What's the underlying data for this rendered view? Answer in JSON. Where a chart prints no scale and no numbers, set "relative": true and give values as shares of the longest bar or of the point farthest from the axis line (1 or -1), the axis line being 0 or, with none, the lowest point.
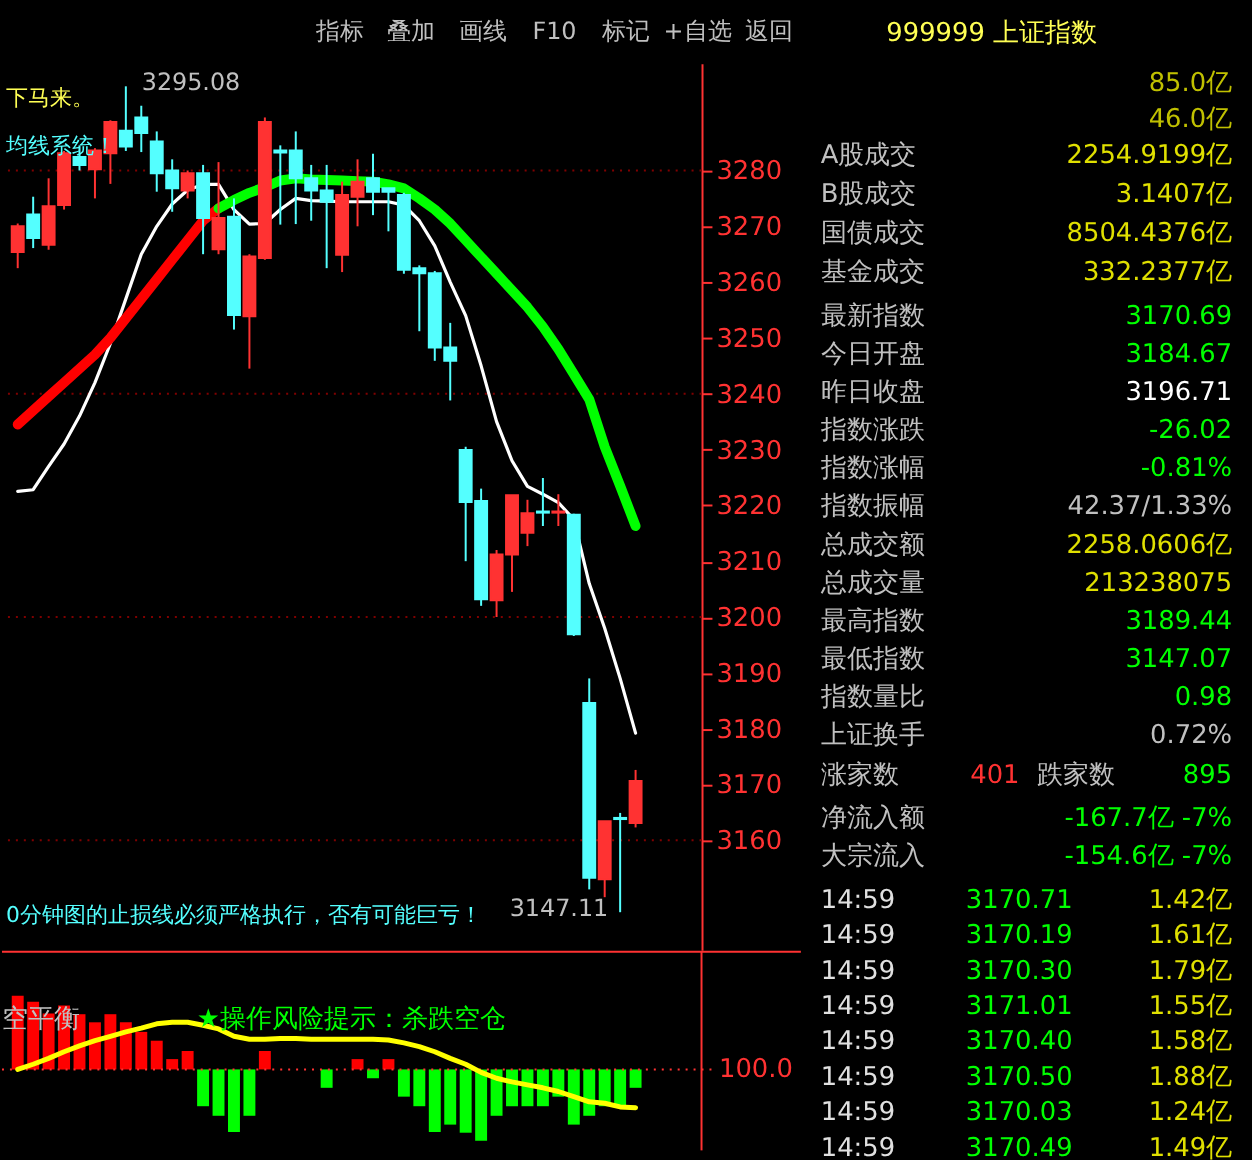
{
  "chart_data": [
    {
      "type": "other",
      "annotations": [
        "指标",
        "叠加",
        "画线",
        "F10",
        "标记",
        "+自选",
        "返回"
      ]
    },
    {
      "type": "candlestick",
      "categories": [
        null,
        null,
        null,
        null,
        null,
        null,
        null,
        null,
        null,
        null,
        null,
        null,
        null,
        null,
        null,
        null,
        null,
        null,
        null,
        null,
        null,
        null,
        null,
        null,
        null,
        null,
        null,
        null,
        null,
        null,
        null,
        null,
        null,
        null,
        null,
        null,
        null,
        null,
        null,
        null,
        null
      ],
      "ohlc": [
        [
          3265.4,
          3270.5,
          3262.5,
          3270.0
        ],
        [
          3272.1,
          3275.3,
          3266.1,
          3267.9
        ],
        [
          3266.7,
          3278.6,
          3265.8,
          3273.6
        ],
        [
          3273.8,
          3283.5,
          3273.0,
          3283.1
        ],
        [
          3282.4,
          3284.5,
          3280.0,
          3281.0
        ],
        [
          3280.2,
          3284.0,
          3275.0,
          3283.6
        ],
        [
          3283.1,
          3289.0,
          3277.6,
          3288.7
        ],
        [
          3287.1,
          3295.08,
          3283.5,
          3284.3
        ],
        [
          3289.5,
          3291.6,
          3283.3,
          3286.7
        ],
        [
          3285.2,
          3287.0,
          3276.2,
          3279.5
        ],
        [
          3280.0,
          3282.0,
          3272.6,
          3276.8
        ],
        [
          3276.4,
          3280.0,
          3275.0,
          3279.5
        ],
        [
          3279.5,
          3281.0,
          3265.0,
          3271.5
        ],
        [
          3265.9,
          3281.5,
          3265.0,
          3271.5
        ],
        [
          3271.7,
          3275.0,
          3251.5,
          3254.1
        ],
        [
          3253.9,
          3265.0,
          3244.5,
          3264.6
        ],
        [
          3264.3,
          3289.5,
          3264.0,
          3288.7
        ],
        [
          3283.6,
          3284.5,
          3270.3,
          3283.2
        ],
        [
          3283.6,
          3287.0,
          3270.4,
          3278.6
        ],
        [
          3278.6,
          3281.0,
          3271.0,
          3276.4
        ],
        [
          3276.4,
          3281.0,
          3262.5,
          3274.4
        ],
        [
          3264.9,
          3278.0,
          3261.8,
          3275.6
        ],
        [
          3275.3,
          3282.0,
          3270.0,
          3278.0
        ],
        [
          3278.6,
          3283.0,
          3272.0,
          3276.2
        ],
        [
          3276.8,
          3276.8,
          3269.1,
          3276.2
        ],
        [
          3275.6,
          3276.0,
          3261.5,
          3262.2
        ],
        [
          3262.5,
          3263.0,
          3251.2,
          3261.6
        ],
        [
          3261.6,
          3262.0,
          3245.9,
          3248.3
        ],
        [
          3248.3,
          3252.7,
          3238.8,
          3245.9
        ],
        [
          3229.9,
          3230.5,
          3210.0,
          3220.6
        ],
        [
          3220.8,
          3223.0,
          3202.0,
          3203.2
        ],
        [
          3203.0,
          3212.0,
          3200.0,
          3211.2
        ],
        [
          3211.2,
          3221.8,
          3204.5,
          3221.8
        ],
        [
          3215.1,
          3221.0,
          3212.7,
          3218.6
        ],
        [
          3218.9,
          3224.9,
          3216.3,
          3218.7
        ],
        [
          3218.7,
          3222.0,
          3216.3,
          3218.9
        ],
        [
          3218.3,
          3218.5,
          3196.6,
          3196.9
        ],
        [
          3184.6,
          3189.0,
          3151.2,
          3153.3
        ],
        [
          3153.0,
          3163.4,
          3149.8,
          3163.4
        ],
        [
          3164.0,
          3164.9,
          3147.11,
          3163.8
        ],
        [
          3163.1,
          3172.6,
          3162.3,
          3170.6
        ]
      ],
      "colors": [
        "#ff3232",
        "#54ffff",
        "#ff3232",
        "#ff3232",
        "#54ffff",
        "#ff3232",
        "#ff3232",
        "#54ffff",
        "#54ffff",
        "#54ffff",
        "#54ffff",
        "#ff3232",
        "#54ffff",
        "#ff3232",
        "#54ffff",
        "#ff3232",
        "#ff3232",
        "#54ffff",
        "#54ffff",
        "#54ffff",
        "#54ffff",
        "#ff3232",
        "#ff3232",
        "#54ffff",
        "#54ffff",
        "#54ffff",
        "#54ffff",
        "#54ffff",
        "#54ffff",
        "#54ffff",
        "#54ffff",
        "#ff3232",
        "#ff3232",
        "#ff3232",
        "#54ffff",
        "#ff3232",
        "#54ffff",
        "#54ffff",
        "#ff3232",
        "#54ffff",
        "#ff3232"
      ],
      "series": [
        {
          "type": "line",
          "color": "#ffffff",
          "values": [
            3222.5,
            3222.8,
            3227,
            3231,
            3236,
            3242,
            3249,
            3257,
            3265,
            3270,
            3274,
            3276.5,
            3277.5,
            3277.5,
            3273,
            3270.4,
            3270.5,
            3273,
            3275,
            3274.6,
            3274.5,
            3274.4,
            3274.4,
            3274.4,
            3274.4,
            3273.8,
            3271,
            3266.5,
            3260,
            3254,
            3245,
            3235,
            3228,
            3223.4,
            3222,
            3220.5,
            3217.5,
            3206,
            3198,
            3189,
            3179.2
          ]
        },
        {
          "type": "line",
          "color": "#ff0000",
          "values": [
            3234.5,
            3237,
            3239.5,
            3242,
            3244.5,
            3247,
            3250,
            3253.5,
            3257,
            3260.5,
            3264,
            3267.5,
            3271,
            3273.2,
            null,
            null,
            null,
            null,
            null,
            null,
            null,
            null,
            null,
            null,
            null,
            null,
            null,
            null,
            null,
            null,
            null,
            null,
            null,
            null,
            null,
            null,
            null,
            null,
            null,
            null,
            null
          ]
        },
        {
          "type": "line",
          "color": "#00ff00",
          "values": [
            null,
            null,
            null,
            null,
            null,
            null,
            null,
            null,
            null,
            null,
            null,
            null,
            null,
            3273.2,
            3274.7,
            3276,
            3277,
            3278.2,
            3278.6,
            3278.4,
            3278.3,
            3278.2,
            3278.1,
            3278,
            3277.5,
            3276.8,
            3275,
            3273,
            3270.5,
            3267.5,
            3264.5,
            3261.5,
            3258.5,
            3255.5,
            3252,
            3248,
            3243.5,
            3239,
            3230.5,
            3223.5,
            3216.3
          ]
        }
      ],
      "ylim": [
        3140.4,
        3299.2
      ],
      "yticks": [
        3160,
        3170,
        3180,
        3190,
        3200,
        3210,
        3220,
        3230,
        3240,
        3250,
        3260,
        3270,
        3280
      ],
      "ref_lines": [
        {
          "axis": "y",
          "value": 3160,
          "color": "#800000",
          "line_style": "dotted"
        },
        {
          "axis": "y",
          "value": 3200,
          "color": "#800000",
          "line_style": "dotted"
        },
        {
          "axis": "y",
          "value": 3240,
          "color": "#800000",
          "line_style": "dotted"
        },
        {
          "axis": "y",
          "value": 3280,
          "color": "#800000",
          "line_style": "dotted"
        }
      ],
      "annotations": [
        "下马来。",
        "均线系统！",
        "0分钟图的止损线必须严格执行，否有可能巨亏！",
        "3295.08",
        "3147.11"
      ]
    },
    {
      "type": "bar",
      "relative": true,
      "categories": [
        null,
        null,
        null,
        null,
        null,
        null,
        null,
        null,
        null,
        null,
        null,
        null,
        null,
        null,
        null,
        null,
        null,
        null,
        null,
        null,
        null,
        null,
        null,
        null,
        null,
        null,
        null,
        null,
        null,
        null,
        null,
        null,
        null,
        null,
        null,
        null,
        null,
        null,
        null,
        null,
        null
      ],
      "values": [
        1,
        0.92,
        0.76,
        0.87,
        0.75,
        0.64,
        0.75,
        0.64,
        0.51,
        0.39,
        0.14,
        0.25,
        -0.5,
        -0.63,
        -0.85,
        -0.63,
        0.25,
        0,
        0,
        0,
        -0.25,
        0,
        0.14,
        -0.12,
        0.14,
        -0.37,
        -0.5,
        -0.85,
        -0.75,
        -0.86,
        -0.97,
        -0.63,
        -0.5,
        -0.5,
        -0.5,
        -0.37,
        -0.75,
        -0.63,
        -0.5,
        -0.5,
        -0.25
      ],
      "colors": [
        "#ff0000",
        "#ff0000",
        "#ff0000",
        "#ff0000",
        "#ff0000",
        "#ff0000",
        "#ff0000",
        "#ff0000",
        "#ff0000",
        "#ff0000",
        "#ff0000",
        "#ff0000",
        "#00ff00",
        "#00ff00",
        "#00ff00",
        "#00ff00",
        "#ff0000",
        "#ff0000",
        "#ff0000",
        "#ff0000",
        "#00ff00",
        "#ff0000",
        "#ff0000",
        "#00ff00",
        "#ff0000",
        "#00ff00",
        "#00ff00",
        "#00ff00",
        "#00ff00",
        "#00ff00",
        "#00ff00",
        "#00ff00",
        "#00ff00",
        "#00ff00",
        "#00ff00",
        "#00ff00",
        "#00ff00",
        "#00ff00",
        "#00ff00",
        "#00ff00",
        "#00ff00"
      ],
      "series": [
        {
          "type": "line",
          "color": "#ffff00",
          "values": [
            0,
            0.07,
            0.15,
            0.24,
            0.32,
            0.39,
            0.45,
            0.51,
            0.56,
            0.62,
            0.64,
            0.64,
            0.6,
            0.55,
            0.45,
            0.41,
            0.41,
            0.42,
            0.42,
            0.41,
            0.41,
            0.41,
            0.41,
            0.41,
            0.4,
            0.36,
            0.31,
            0.24,
            0.15,
            0.07,
            -0.04,
            -0.12,
            -0.17,
            -0.21,
            -0.25,
            -0.3,
            -0.37,
            -0.44,
            -0.46,
            -0.51,
            -0.52
          ]
        }
      ],
      "ref_lines": [
        {
          "axis": "y",
          "value": 0,
          "color": "#ff3232",
          "line_style": "dotted"
        }
      ],
      "annotations": [
        "空平衡",
        "★操作风险提示：杀跌空仓",
        "100.0"
      ]
    },
    {
      "type": "other",
      "title": "999999 上证指数",
      "categories": [
        null,
        null,
        "A股成交",
        "B股成交",
        "国债成交",
        "基金成交",
        "最新指数",
        "今日开盘",
        "昨日收盘",
        "指数涨跌",
        "指数涨幅",
        "指数振幅",
        "总成交额",
        "总成交量",
        "最高指数",
        "最低指数",
        "指数量比",
        "上证换手",
        "涨家数",
        "跌家数",
        "净流入额",
        "大宗流入"
      ],
      "value_labels": [
        "85.0亿",
        "46.0亿",
        "2254.9199亿",
        "3.1407亿",
        "8504.4376亿",
        "332.2377亿",
        "3170.69",
        "3184.67",
        "3196.71",
        "-26.02",
        "-0.81%",
        "42.37/1.33%",
        "2258.0606亿",
        "213238075",
        "3189.44",
        "3147.07",
        "0.98",
        "0.72%",
        "401",
        "895",
        "-167.7亿 -7%",
        "-154.6亿 -7%"
      ],
      "colors": [
        "#c0c000",
        "#c0c000",
        "#e0e000",
        "#e0e000",
        "#e0e000",
        "#e0e000",
        "#00ff00",
        "#00ff00",
        "#ffffff",
        "#00ff00",
        "#00ff00",
        "#c0c0c0",
        "#e0e000",
        "#e0e000",
        "#00ff00",
        "#00ff00",
        "#00ff00",
        "#c0c0c0",
        "#ff3232",
        "#00ff00",
        "#00ff00",
        "#00ff00"
      ],
      "annotations": [
        "14:59 3170.71 1.42亿",
        "14:59 3170.19 1.61亿",
        "14:59 3170.30 1.79亿",
        "14:59 3171.01 1.55亿",
        "14:59 3170.40 1.58亿",
        "14:59 3170.50 1.88亿",
        "14:59 3170.03 1.24亿",
        "14:59 3170.49 1.49亿"
      ]
    }
  ]
}
